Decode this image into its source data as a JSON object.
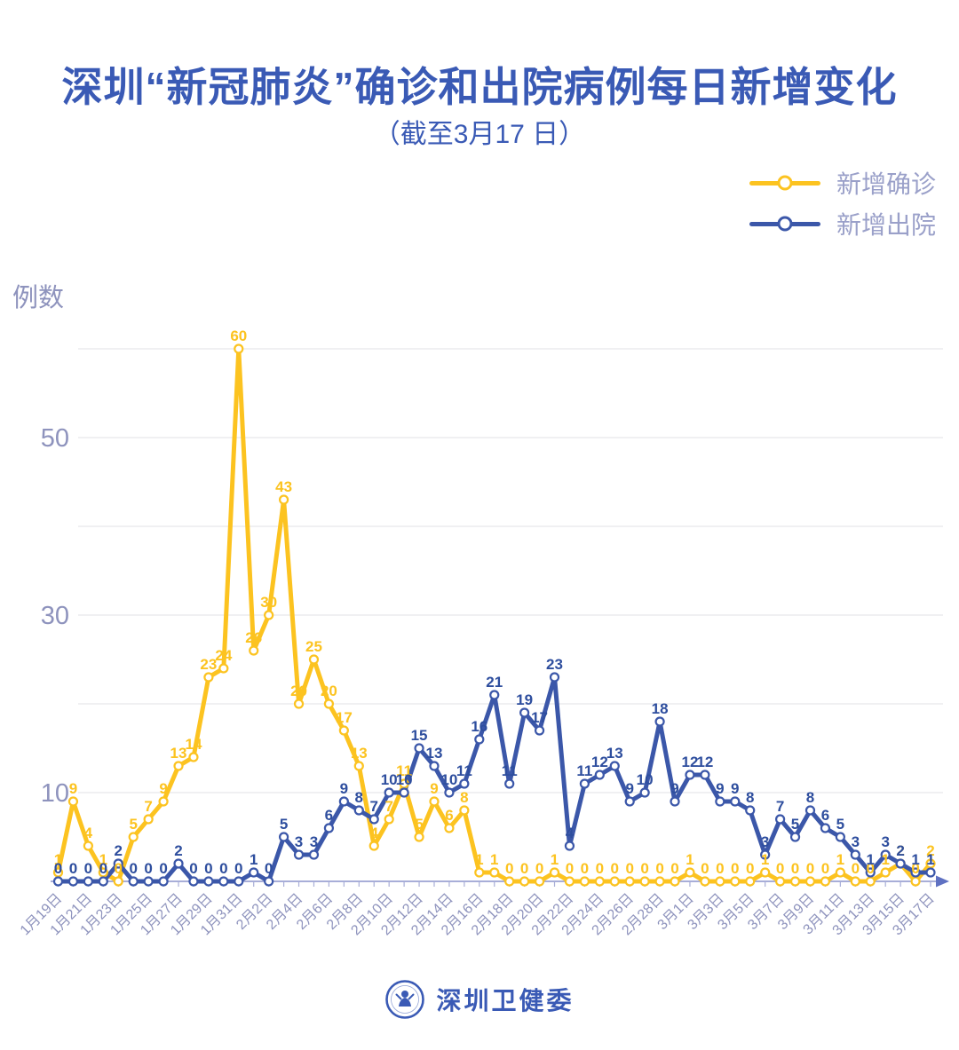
{
  "title": "深圳“新冠肺炎”确诊和出院病例每日新增变化",
  "subtitle": "（截至3月17 日）",
  "y_axis_title": "例数",
  "footer": {
    "brand": "深圳卫健委"
  },
  "colors": {
    "title": "#3a5ab5",
    "axis_label": "#8e93bd",
    "legend_text": "#9aa0c9",
    "grid": "#e8e8ea",
    "axis_line": "#a8aed8",
    "arrow": "#5f71c2",
    "confirmed": "#fcc320",
    "confirmed_label": "#fcc320",
    "discharged": "#3b57a9",
    "discharged_label": "#2e4e9e"
  },
  "chart_data": {
    "type": "line",
    "title": "深圳“新冠肺炎”确诊和出院病例每日新增变化（截至3月17日）",
    "ylabel": "例数",
    "ylim": [
      0,
      62
    ],
    "grid": "on",
    "legend_position": "top-right",
    "y_ticks_labeled": [
      10,
      30,
      50
    ],
    "gridline_values": [
      10,
      20,
      30,
      40,
      50,
      60
    ],
    "x_label_interval": 2,
    "x": [
      "1月19日",
      "1月20日",
      "1月21日",
      "1月22日",
      "1月23日",
      "1月24日",
      "1月25日",
      "1月26日",
      "1月27日",
      "1月28日",
      "1月29日",
      "1月30日",
      "1月31日",
      "2月1日",
      "2月2日",
      "2月3日",
      "2月4日",
      "2月5日",
      "2月6日",
      "2月7日",
      "2月8日",
      "2月9日",
      "2月10日",
      "2月11日",
      "2月12日",
      "2月13日",
      "2月14日",
      "2月15日",
      "2月16日",
      "2月17日",
      "2月18日",
      "2月19日",
      "2月20日",
      "2月21日",
      "2月22日",
      "2月23日",
      "2月24日",
      "2月25日",
      "2月26日",
      "2月27日",
      "2月28日",
      "2月29日",
      "3月1日",
      "3月2日",
      "3月3日",
      "3月4日",
      "3月5日",
      "3月6日",
      "3月7日",
      "3月8日",
      "3月9日",
      "3月10日",
      "3月11日",
      "3月12日",
      "3月13日",
      "3月14日",
      "3月15日",
      "3月16日",
      "3月17日"
    ],
    "series": [
      {
        "id": "confirmed",
        "name": "新增确诊",
        "color": "#fcc320",
        "label_color": "#fcc320",
        "values": [
          1,
          9,
          4,
          1,
          0,
          5,
          7,
          9,
          13,
          14,
          23,
          24,
          60,
          26,
          30,
          43,
          20,
          25,
          20,
          17,
          13,
          4,
          7,
          11,
          5,
          9,
          6,
          8,
          1,
          1,
          0,
          0,
          0,
          1,
          0,
          0,
          0,
          0,
          0,
          0,
          0,
          0,
          1,
          0,
          0,
          0,
          0,
          1,
          0,
          0,
          0,
          0,
          1,
          0,
          0,
          1,
          2,
          0,
          2
        ]
      },
      {
        "id": "discharged",
        "name": "新增出院",
        "color": "#3b57a9",
        "label_color": "#2e4e9e",
        "values": [
          0,
          0,
          0,
          0,
          2,
          0,
          0,
          0,
          2,
          0,
          0,
          0,
          0,
          1,
          0,
          5,
          3,
          3,
          6,
          9,
          8,
          7,
          10,
          10,
          15,
          13,
          10,
          11,
          16,
          21,
          11,
          19,
          17,
          23,
          4,
          11,
          12,
          13,
          9,
          10,
          18,
          9,
          12,
          12,
          9,
          9,
          8,
          3,
          7,
          5,
          8,
          6,
          5,
          3,
          1,
          3,
          2,
          1,
          1
        ]
      }
    ]
  }
}
